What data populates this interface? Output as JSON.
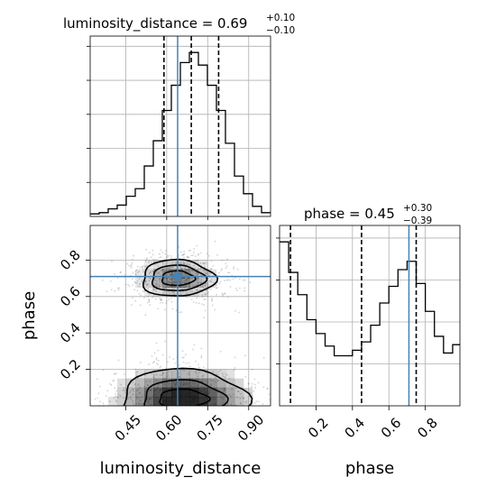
{
  "colors": {
    "truth": "#4682b4",
    "hist": "#000000",
    "grid": "#b0b0b0",
    "density": "#000000",
    "points": "#808080"
  },
  "titles": {
    "luminosity_distance": {
      "main": "luminosity_distance = 0.69",
      "upper": "+0.10",
      "lower": "−0.10"
    },
    "phase": {
      "main": "phase = 0.45",
      "upper": "+0.30",
      "lower": "−0.39"
    }
  },
  "axis_labels": {
    "x_left": "luminosity_distance",
    "x_right": "phase",
    "y_left": "phase"
  },
  "chart_data": {
    "type": "corner",
    "parameters": [
      "luminosity_distance",
      "phase"
    ],
    "truths": {
      "luminosity_distance": 0.64,
      "phase": 0.71
    },
    "ranges": {
      "luminosity_distance": [
        0.32,
        0.98
      ],
      "phase": [
        0.0,
        0.99
      ]
    },
    "ticks": {
      "luminosity_distance": [
        "0.45",
        "0.60",
        "0.75",
        "0.90"
      ],
      "phase": [
        "0.2",
        "0.4",
        "0.6",
        "0.8"
      ]
    },
    "grid": true,
    "histograms": {
      "luminosity_distance": {
        "quantiles": [
          0.59,
          0.69,
          0.79
        ],
        "bin_edges": [
          0.32,
          0.353,
          0.386,
          0.419,
          0.452,
          0.485,
          0.518,
          0.551,
          0.584,
          0.617,
          0.65,
          0.683,
          0.716,
          0.749,
          0.782,
          0.815,
          0.848,
          0.881,
          0.914,
          0.947,
          0.98
        ],
        "counts": [
          2,
          3,
          6,
          9,
          16,
          22,
          40,
          60,
          84,
          104,
          122,
          130,
          120,
          104,
          84,
          58,
          32,
          18,
          8,
          3
        ]
      },
      "phase": {
        "quantiles": [
          0.06,
          0.45,
          0.75
        ],
        "bin_edges": [
          0.0,
          0.05,
          0.1,
          0.15,
          0.2,
          0.25,
          0.3,
          0.35,
          0.4,
          0.45,
          0.5,
          0.55,
          0.6,
          0.65,
          0.7,
          0.75,
          0.8,
          0.85,
          0.9,
          0.95,
          0.99
        ],
        "counts": [
          118,
          96,
          80,
          62,
          52,
          43,
          36,
          36,
          40,
          46,
          58,
          74,
          86,
          98,
          104,
          88,
          68,
          50,
          38,
          44
        ]
      }
    },
    "density_2d": {
      "x": "luminosity_distance",
      "y": "phase",
      "modes": [
        {
          "center": [
            0.64,
            0.7
          ],
          "level_radii": [
            [
              0.133,
              0.1
            ],
            [
              0.098,
              0.07
            ],
            [
              0.06,
              0.04
            ]
          ]
        },
        {
          "center": [
            0.66,
            0.04
          ],
          "level_radii": [
            [
              0.23,
              0.16
            ],
            [
              0.15,
              0.1
            ],
            [
              0.09,
              0.05
            ]
          ]
        }
      ]
    }
  }
}
